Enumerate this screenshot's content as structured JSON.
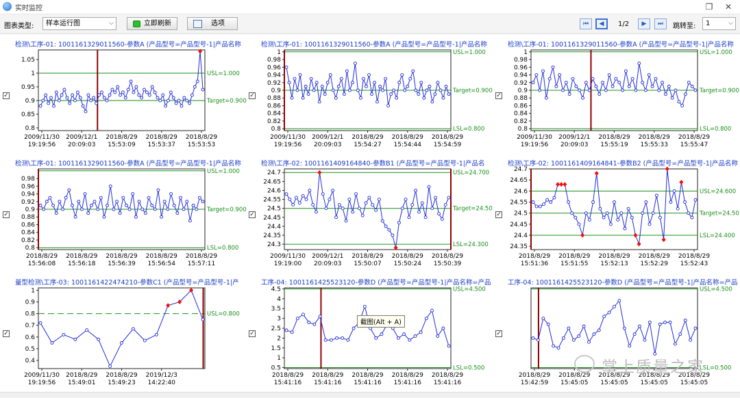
{
  "window": {
    "title": "实时监控",
    "restore_icon": "restore-icon",
    "close_icon": "close-icon"
  },
  "toolbar": {
    "chart_type_label": "图表类型:",
    "chart_type_value": "样本运行图",
    "refresh_label": "立即刷新",
    "options_label": "选项",
    "page_indicator": "1/2",
    "jump_label": "跳转至:",
    "jump_value": "1"
  },
  "tooltip": "截图(Alt + A)",
  "watermark": "掌上质量之家",
  "colors": {
    "line": "#1f2bd8",
    "spec": "#1a8f1a",
    "marker": "#8b0000",
    "outlier": "#ee1111",
    "title": "#1a3cc8"
  },
  "chart_data": [
    {
      "type": "line",
      "title": "检测\\工序-01: 1001161329011560-参数A     (产品型号=产品型号-1|产品名称",
      "ylim": [
        0.79,
        1.085
      ],
      "yticks": [
        0.8,
        0.85,
        0.9,
        0.95,
        1,
        1.05
      ],
      "ytick_labels": [
        "0.8",
        "0.85",
        "0.9",
        "0.95",
        "1",
        "1.05"
      ],
      "lines": [
        {
          "label": "USL=1.000",
          "y": 1.0
        },
        {
          "label": "Target=0.900",
          "y": 0.9
        }
      ],
      "marker_x": 0.355,
      "dashed": false,
      "xtick_labels": [
        [
          "2009/11/30",
          "19:19:56"
        ],
        [
          "2009/12/1",
          "20:09:03"
        ],
        [
          "2018/8/29",
          "15:53:09"
        ],
        [
          "2018/8/29",
          "15:53:37"
        ],
        [
          "2018/8/29",
          "15:53:53"
        ]
      ],
      "values": [
        0.88,
        0.9,
        0.92,
        0.89,
        0.91,
        0.88,
        0.93,
        0.9,
        0.92,
        0.94,
        0.91,
        0.89,
        0.92,
        0.9,
        0.93,
        0.91,
        0.88,
        0.86,
        0.92,
        0.9,
        0.91,
        0.89,
        0.92,
        0.93,
        0.91,
        0.9,
        0.92,
        0.94,
        0.93,
        0.95,
        0.92,
        0.93,
        0.91,
        0.94,
        0.97,
        0.93,
        0.95,
        0.92,
        0.91,
        0.94,
        0.93,
        0.92,
        0.95,
        0.93,
        0.91,
        0.9,
        0.92,
        0.88,
        0.9,
        0.93,
        0.91,
        0.89,
        0.9,
        0.88,
        0.91,
        0.9,
        0.89,
        0.92,
        0.95,
        0.97,
        1.08,
        0.94
      ],
      "outliers": [
        60
      ]
    },
    {
      "type": "line",
      "title": "检测\\工序-01: 1001161329011560-参数A     (产品型号=产品型号-1|产品名称",
      "ylim": [
        0.795,
        1.005
      ],
      "yticks": [
        0.8,
        0.82,
        0.84,
        0.86,
        0.88,
        0.9,
        0.92,
        0.94,
        0.96,
        0.98,
        1
      ],
      "ytick_labels": [
        "0.8",
        "0.82",
        "0.84",
        "0.86",
        "0.88",
        "0.9",
        "0.92",
        "0.94",
        "0.96",
        "0.98",
        "1"
      ],
      "lines": [
        {
          "label": "USL=1.000",
          "y": 1.0
        },
        {
          "label": "Target=0.900",
          "y": 0.9
        },
        {
          "label": "LSL=0.800",
          "y": 0.8
        }
      ],
      "marker_x": 0.0,
      "dashed": false,
      "xtick_labels": [
        [
          "2009/11/30",
          "19:19:56"
        ],
        [
          "2009/12/1",
          "20:09:03"
        ],
        [
          "2018/8/29",
          "15:54:27"
        ],
        [
          "2018/8/29",
          "15:54:44"
        ],
        [
          "2018/8/29",
          "15:54:59"
        ]
      ],
      "values": [
        0.96,
        0.92,
        0.88,
        0.93,
        0.9,
        0.94,
        0.88,
        0.91,
        0.89,
        0.93,
        0.9,
        0.92,
        0.87,
        0.91,
        0.89,
        0.92,
        0.94,
        0.9,
        0.88,
        0.91,
        0.93,
        0.89,
        0.95,
        0.9,
        0.92,
        0.97,
        0.9,
        0.88,
        0.93,
        0.91,
        0.94,
        0.89,
        0.92,
        0.87,
        0.91,
        0.9,
        0.93,
        0.86,
        0.89,
        0.9,
        0.88,
        0.92,
        0.94,
        0.9,
        0.91,
        0.93,
        0.95,
        0.9,
        0.89,
        0.92,
        0.88,
        0.9,
        0.91,
        0.87,
        0.89,
        0.92,
        0.9,
        0.88,
        0.91,
        0.89
      ],
      "outliers": []
    },
    {
      "type": "line",
      "title": "检测\\工序-01: 1001161329011560-参数A     (产品型号=产品型号-1|产品名称",
      "ylim": [
        0.795,
        1.005
      ],
      "yticks": [
        0.8,
        0.82,
        0.84,
        0.86,
        0.88,
        0.9,
        0.92,
        0.94,
        0.96,
        0.98,
        1
      ],
      "ytick_labels": [
        "0.8",
        "0.82",
        "0.84",
        "0.86",
        "0.88",
        "0.9",
        "0.92",
        "0.94",
        "0.96",
        "0.98",
        "1"
      ],
      "lines": [
        {
          "label": "USL=1.000",
          "y": 1.0
        },
        {
          "label": "Target=0.900",
          "y": 0.9
        },
        {
          "label": "LSL=0.800",
          "y": 0.8
        }
      ],
      "marker_x": 0.36,
      "dashed": false,
      "xtick_labels": [
        [
          "2009/11/30",
          "19:19:56"
        ],
        [
          "2009/12/1",
          "20:09:03"
        ],
        [
          "2018/8/29",
          "15:55:19"
        ],
        [
          "2018/8/29",
          "15:55:33"
        ],
        [
          "2018/8/29",
          "15:55:47"
        ]
      ],
      "values": [
        0.92,
        0.94,
        0.9,
        0.95,
        0.88,
        0.93,
        0.96,
        0.91,
        0.94,
        0.9,
        0.92,
        0.89,
        0.93,
        0.91,
        0.9,
        0.88,
        0.92,
        0.9,
        0.93,
        0.91,
        0.89,
        0.92,
        0.9,
        0.94,
        0.91,
        0.93,
        0.92,
        0.9,
        0.95,
        0.91,
        0.93,
        0.9,
        0.97,
        0.92,
        0.9,
        0.94,
        0.91,
        0.93,
        0.9,
        0.92,
        0.89,
        0.91,
        0.88,
        0.9,
        0.87,
        0.86,
        0.89,
        0.92,
        0.91,
        0.9
      ],
      "outliers": []
    },
    {
      "type": "line",
      "title": "检测\\工序-01: 1001161329011560-参数A     (产品型号=产品型号-1|产品名称",
      "ylim": [
        0.795,
        1.005
      ],
      "yticks": [
        0.8,
        0.82,
        0.84,
        0.86,
        0.88,
        0.9,
        0.92,
        0.94,
        0.96,
        0.98
      ],
      "ytick_labels": [
        "0.8",
        "0.82",
        "0.84",
        "0.86",
        "0.88",
        "0.9",
        "0.92",
        "0.94",
        "0.96",
        "0.98"
      ],
      "lines": [
        {
          "label": "USL=1.000",
          "y": 1.0
        },
        {
          "label": "Target=0.900",
          "y": 0.9
        },
        {
          "label": "LSL=0.800",
          "y": 0.8
        }
      ],
      "marker_x": 0.0,
      "dashed": false,
      "xtick_labels": [
        [
          "2018/8/29",
          "15:56:08"
        ],
        [
          "2018/8/29",
          "15:56:18"
        ],
        [
          "2018/8/29",
          "15:56:39"
        ],
        [
          "2018/8/29",
          "15:56:54"
        ],
        [
          "2018/8/29",
          "15:57:11"
        ]
      ],
      "values": [
        0.91,
        0.9,
        0.92,
        0.93,
        0.91,
        0.89,
        0.92,
        0.9,
        0.93,
        0.95,
        0.91,
        0.88,
        0.92,
        0.9,
        0.94,
        0.89,
        0.91,
        0.92,
        0.9,
        0.93,
        0.88,
        0.91,
        0.96,
        0.9,
        0.92,
        0.89,
        0.93,
        0.91,
        0.9,
        0.94,
        0.88,
        0.92,
        0.9,
        0.89,
        0.93,
        0.91,
        0.9,
        0.95,
        0.88,
        0.92,
        0.9,
        0.94,
        0.91,
        0.89,
        0.93,
        0.9,
        0.92,
        0.87,
        0.91,
        0.9,
        0.93,
        0.92
      ],
      "outliers": []
    },
    {
      "type": "line",
      "title": "检测\\工序-02: 1001161409164840-参数B1     (产品型号=产品型号-1|产品名",
      "ylim": [
        24.27,
        24.72
      ],
      "yticks": [
        24.3,
        24.35,
        24.4,
        24.45,
        24.5,
        24.55,
        24.6,
        24.65,
        24.7
      ],
      "ytick_labels": [
        "24.3",
        "24.35",
        "24.4",
        "24.45",
        "24.5",
        "24.55",
        "24.6",
        "24.65",
        "24.7"
      ],
      "lines": [
        {
          "label": "USL=24.700",
          "y": 24.7
        },
        {
          "label": "Target=24.500",
          "y": 24.5
        },
        {
          "label": "LSL=24.300",
          "y": 24.3
        }
      ],
      "marker_x": 1.0,
      "dashed": false,
      "xtick_labels": [
        [
          "2009/11/30",
          "19:19:00"
        ],
        [
          "2009/12/1",
          "20:09:03"
        ],
        [
          "2018/8/29",
          "15:50:07"
        ],
        [
          "2018/8/29",
          "15:50:24"
        ],
        [
          "2018/8/29",
          "15:50:39"
        ]
      ],
      "values": [
        24.58,
        24.55,
        24.52,
        24.56,
        24.53,
        24.57,
        24.55,
        24.6,
        24.52,
        24.48,
        24.7,
        24.58,
        24.5,
        24.55,
        24.6,
        24.45,
        24.52,
        24.5,
        24.43,
        24.55,
        24.48,
        24.58,
        24.5,
        24.46,
        24.53,
        24.56,
        24.52,
        24.49,
        24.55,
        24.43,
        24.4,
        24.38,
        24.35,
        24.28,
        24.42,
        24.5,
        24.55,
        24.45,
        24.52,
        24.6,
        24.48,
        24.53,
        24.45,
        24.62,
        24.5,
        24.56,
        24.47,
        24.44,
        24.52,
        24.56
      ],
      "outliers": [
        10,
        33
      ]
    },
    {
      "type": "line",
      "title": "检测\\工序-02: 1001161409164841-参数B2     (产品型号=产品型号-1|产品名称",
      "ylim": [
        24.335,
        24.7
      ],
      "yticks": [
        24.35,
        24.4,
        24.45,
        24.5,
        24.55,
        24.6,
        24.65,
        24.7
      ],
      "ytick_labels": [
        "24.35",
        "24.4",
        "24.45",
        "24.5",
        "24.55",
        "24.6",
        "24.65",
        "24.7"
      ],
      "lines": [
        {
          "label": "USL=24.600",
          "y": 24.6
        },
        {
          "label": "Target=24.500",
          "y": 24.5
        },
        {
          "label": "LSL=24.400",
          "y": 24.4
        }
      ],
      "marker_x": 0.0,
      "dashed": false,
      "xtick_labels": [
        [
          "2018/8/29",
          "15:51:36"
        ],
        [
          "2018/8/29",
          "15:51:55"
        ],
        [
          "2018/8/29",
          "15:52:13"
        ],
        [
          "2018/8/29",
          "15:52:29"
        ],
        [
          "2018/8/29",
          "15:52:43"
        ]
      ],
      "values": [
        24.55,
        24.53,
        24.53,
        24.54,
        24.56,
        24.55,
        24.57,
        24.63,
        24.63,
        24.63,
        24.55,
        24.5,
        24.48,
        24.45,
        24.4,
        24.5,
        24.47,
        24.55,
        24.68,
        24.52,
        24.48,
        24.5,
        24.45,
        24.55,
        24.47,
        24.5,
        24.43,
        24.52,
        24.48,
        24.4,
        24.36,
        24.5,
        24.55,
        24.45,
        24.5,
        24.58,
        24.48,
        24.38,
        24.7,
        24.55,
        24.6,
        24.52,
        24.64,
        24.55,
        24.5,
        24.48,
        24.56
      ],
      "outliers": [
        7,
        8,
        9,
        14,
        18,
        29,
        30,
        37,
        38,
        42
      ]
    },
    {
      "type": "line",
      "title": "量型检测\\工序-03: 1001161422474210-参数C1     (产品型号=产品型号-1|产",
      "ylim": [
        0.33,
        1.02
      ],
      "yticks": [
        0.4,
        0.5,
        0.6,
        0.7,
        0.8,
        0.9,
        1
      ],
      "ytick_labels": [
        "0.4",
        "0.5",
        "0.6",
        "0.7",
        "0.8",
        "0.9",
        "1"
      ],
      "lines": [
        {
          "label": "USL=0.800",
          "y": 0.8
        }
      ],
      "marker_x": 0.99,
      "dashed": true,
      "xtick_labels": [
        [
          "2009/11/30",
          "19:19:56"
        ],
        [
          "2018/8/29",
          "15:49:01"
        ],
        [
          "2018/8/29",
          "15:49:23"
        ],
        [
          "2019/12/3",
          "14:22:40"
        ],
        [
          "",
          ""
        ]
      ],
      "values": [
        0.72,
        0.55,
        0.62,
        0.58,
        0.66,
        0.58,
        0.35,
        0.55,
        0.67,
        0.57,
        0.62,
        0.87,
        0.9,
        1.0,
        0.75
      ],
      "outliers": [
        11,
        12,
        13
      ]
    },
    {
      "type": "line",
      "title": "工序-04: 1001161425523120-参数D     (产品型号=产品型号-1|产品名称=产品",
      "ylim": [
        0.45,
        4.55
      ],
      "yticks": [
        0.5,
        1,
        1.5,
        2,
        2.5,
        3,
        3.5,
        4,
        4.5
      ],
      "ytick_labels": [
        "0.5",
        "1",
        "1.5",
        "2",
        "2.5",
        "3",
        "3.5",
        "4",
        "4.5"
      ],
      "lines": [
        {
          "label": "USL=4.500",
          "y": 4.5
        },
        {
          "label": "LSL=0.500",
          "y": 0.5
        }
      ],
      "marker_x": 0.22,
      "dashed": false,
      "xtick_labels": [
        [
          "2018/8/29",
          "15:41:16"
        ],
        [
          "2018/8/29",
          "15:41:16"
        ],
        [
          "2018/8/29",
          "15:41:16"
        ],
        [
          "2018/8/29",
          "15:41:16"
        ],
        [
          "2018/8/29",
          "15:41:16"
        ]
      ],
      "values": [
        2.4,
        2.3,
        3.0,
        3.2,
        2.8,
        2.7,
        3.1,
        1.9,
        1.9,
        2.0,
        2.0,
        1.9,
        2.5,
        2.8,
        3.6,
        2.5,
        2.0,
        2.2,
        2.7,
        2.5,
        2.0,
        2.2,
        1.9,
        2.1,
        2.3,
        3.0,
        3.4,
        2.1,
        2.5,
        1.6
      ],
      "outliers": []
    },
    {
      "type": "line",
      "title": "工序-04: 1001161425523120-参数D     (产品型号=产品型号-1|产品名称=产品",
      "ylim": [
        0.45,
        4.55
      ],
      "yticks": [],
      "ytick_labels": [],
      "lines": [
        {
          "label": "USL=4.500",
          "y": 4.5
        },
        {
          "label": "LSL=0.500",
          "y": 0.5
        }
      ],
      "marker_x": 0.045,
      "dashed": false,
      "xtick_labels": [
        [
          "2018/8/29",
          "15:42:59"
        ],
        [
          "2018/8/29",
          "15:45:05"
        ],
        [
          "2018/8/29",
          "15:45:05"
        ],
        [
          "2018/8/29",
          "15:45:05"
        ],
        [
          "2018/8/29",
          "15:45:05"
        ]
      ],
      "values": [
        2.0,
        1.9,
        3.0,
        2.7,
        1.6,
        1.5,
        2.0,
        2.5,
        1.9,
        2.1,
        2.6,
        1.8,
        2.2,
        2.4,
        3.1,
        3.3,
        3.6,
        3.9,
        2.5,
        1.6,
        2.2,
        2.6,
        1.9,
        2.8,
        1.2,
        2.7,
        2.8,
        2.8,
        1.7,
        2.2,
        2.9,
        1.9,
        2.5
      ],
      "outliers": []
    }
  ]
}
